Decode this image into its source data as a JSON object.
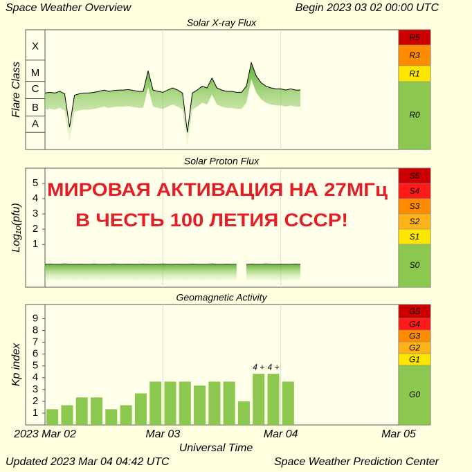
{
  "header": {
    "title": "Space Weather Overview",
    "begin": "Begin 2023 03 02 00:00 UTC"
  },
  "footer": {
    "updated": "Updated 2023 Mar 04 04:42 UTC",
    "source": "Space Weather Prediction Center"
  },
  "overlay": [
    "МИРОВАЯ АКТИВАЦИЯ НА 27МГц",
    "В ЧЕСТЬ 100 ЛЕТИЯ СССР!"
  ],
  "chart_data": [
    {
      "type": "line",
      "title": "Solar X-ray Flux",
      "ylabel": "Flare Class",
      "log_scale": true,
      "ylim": [
        1e-09,
        0.01
      ],
      "yticks": [
        {
          "value": 3e-08,
          "label": "A"
        },
        {
          "value": 2.7e-07,
          "label": "B"
        },
        {
          "value": 3.3e-06,
          "label": "C"
        },
        {
          "value": 2.8e-05,
          "label": "M"
        },
        {
          "value": 0.001,
          "label": "X"
        }
      ],
      "xlim": [
        0,
        72
      ],
      "color": "#000000",
      "fill_color": "#7cc242",
      "x": [
        0,
        1,
        2,
        3,
        4,
        5,
        6,
        7,
        8,
        9,
        10,
        11,
        12,
        13,
        14,
        15,
        16,
        17,
        18,
        19,
        20,
        21,
        22,
        23,
        24,
        25,
        26,
        27,
        28,
        29,
        30,
        31,
        32,
        33,
        34,
        35,
        36,
        37,
        38,
        39,
        40,
        41,
        42,
        43,
        44,
        45,
        46,
        47,
        48,
        49,
        50,
        51,
        52
      ],
      "values": [
        2e-06,
        2.2e-06,
        2e-06,
        2.5e-06,
        1.8e-06,
        2e-08,
        1.5e-06,
        1.8e-06,
        2e-06,
        2e-06,
        2.2e-06,
        2.5e-06,
        3e-06,
        2.5e-06,
        2.8e-06,
        3e-06,
        3e-06,
        3.2e-06,
        2.8e-06,
        2.5e-06,
        2.5e-06,
        4e-05,
        3e-06,
        2.5e-06,
        2.2e-06,
        3e-06,
        4e-06,
        3e-06,
        2e-06,
        1e-08,
        2e-06,
        3e-06,
        5e-06,
        4e-06,
        1.5e-05,
        4e-06,
        3e-06,
        2.5e-06,
        2.5e-06,
        2.2e-06,
        2.2e-06,
        5e-06,
        0.00012,
        2e-05,
        8e-06,
        5e-06,
        4e-06,
        3.5e-06,
        3.5e-06,
        3e-06,
        3.5e-06,
        3e-06,
        3e-06
      ],
      "scale": [
        {
          "label": "R5",
          "color": "#cc0000"
        },
        {
          "label": "R3",
          "color": "#ff8c00"
        },
        {
          "label": "R1",
          "color": "#ffe600"
        },
        {
          "label": "R0",
          "color": "#8cc850"
        }
      ]
    },
    {
      "type": "line",
      "title": "Solar Proton Flux",
      "ylabel": "Log₁₀(pfu)",
      "log_scale": false,
      "ylim": [
        -1.8,
        6
      ],
      "yticks": [
        1,
        2,
        3,
        4,
        5
      ],
      "xlim": [
        0,
        72
      ],
      "color": "#333333",
      "fill_color": "#7cc242",
      "x": [
        0,
        1,
        2,
        3,
        4,
        5,
        6,
        7,
        8,
        9,
        10,
        11,
        12,
        13,
        14,
        15,
        16,
        17,
        18,
        19,
        20,
        21,
        22,
        23,
        24,
        25,
        26,
        27,
        28,
        29,
        30,
        31,
        32,
        33,
        34,
        35,
        36,
        37,
        38,
        39,
        40,
        41,
        42,
        43,
        44,
        45,
        46,
        47,
        48,
        49,
        50,
        51,
        52
      ],
      "values": [
        -0.3,
        -0.28,
        -0.3,
        -0.3,
        -0.27,
        -0.3,
        -0.3,
        -0.29,
        -0.3,
        -0.3,
        -0.28,
        -0.3,
        -0.3,
        -0.3,
        -0.27,
        -0.3,
        -0.3,
        -0.29,
        -0.3,
        -0.3,
        -0.28,
        -0.3,
        -0.3,
        -0.3,
        -0.27,
        -0.3,
        -0.3,
        -0.29,
        -0.3,
        -0.3,
        -0.28,
        -0.3,
        -0.3,
        -0.3,
        -0.27,
        -0.3,
        -0.3,
        -0.29,
        -0.3,
        -0.3,
        null,
        -0.3,
        -0.28,
        -0.3,
        -0.3,
        -0.27,
        -0.3,
        -0.3,
        -0.29,
        -0.3,
        -0.3,
        -0.28,
        -0.3
      ],
      "scale": [
        {
          "label": "S5",
          "color": "#cc0000"
        },
        {
          "label": "S4",
          "color": "#ff1a1a"
        },
        {
          "label": "S3",
          "color": "#ff8c00"
        },
        {
          "label": "S2",
          "color": "#ffb31a"
        },
        {
          "label": "S1",
          "color": "#ffe600"
        },
        {
          "label": "S0",
          "color": "#8cc850"
        }
      ]
    },
    {
      "type": "bar",
      "title": "Geomagnetic Activity",
      "ylabel": "Kp index",
      "xlabel": "Universal Time",
      "ylim": [
        0,
        10.2
      ],
      "yticks": [
        1,
        2,
        3,
        4,
        5,
        6,
        7,
        8,
        9
      ],
      "xlim": [
        0,
        72
      ],
      "xticks": [
        {
          "value": 0,
          "label": "2023 Mar 02"
        },
        {
          "value": 24,
          "label": "Mar 03"
        },
        {
          "value": 48,
          "label": "Mar 04"
        },
        {
          "value": 72,
          "label": "Mar 05"
        }
      ],
      "color": "#8cc850",
      "x": [
        0,
        3,
        6,
        9,
        12,
        15,
        18,
        21,
        24,
        27,
        30,
        33,
        36,
        39,
        42,
        45,
        48
      ],
      "values": [
        1.33,
        1.67,
        2.33,
        2.33,
        1.33,
        1.67,
        2.67,
        3.67,
        3.67,
        3.67,
        3.33,
        3.67,
        3.67,
        2,
        4.33,
        4.33,
        3.67
      ],
      "value_labels": [
        null,
        null,
        null,
        null,
        null,
        null,
        null,
        null,
        null,
        null,
        null,
        null,
        null,
        null,
        "4 +",
        "4 +",
        null
      ],
      "scale": [
        {
          "label": "G5",
          "color": "#cc0000"
        },
        {
          "label": "G4",
          "color": "#ff1a1a"
        },
        {
          "label": "G3",
          "color": "#ff8c00"
        },
        {
          "label": "G2",
          "color": "#ffb31a"
        },
        {
          "label": "G1",
          "color": "#ffe600"
        },
        {
          "label": "G0",
          "color": "#8cc850"
        }
      ]
    }
  ]
}
